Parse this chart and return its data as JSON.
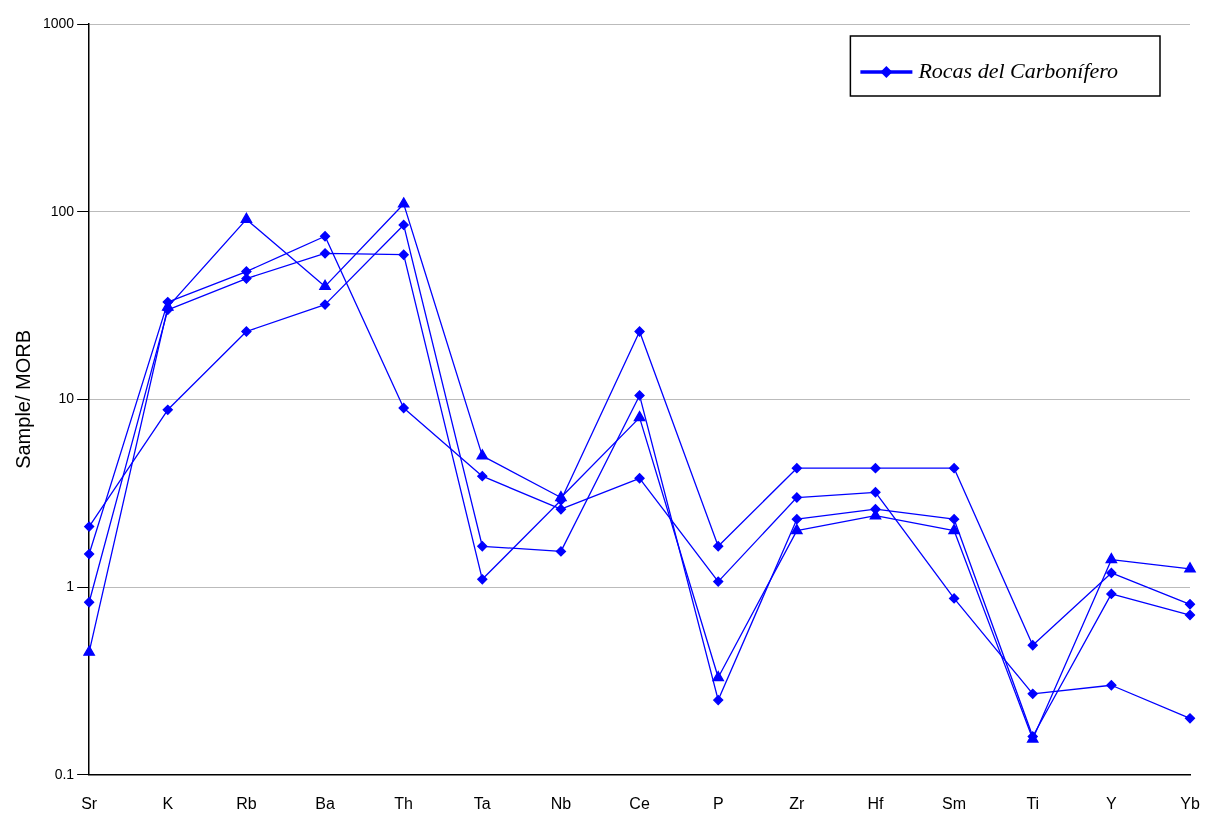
{
  "chart_data": {
    "type": "line",
    "ylabel": "Sample/ MORB",
    "categories": [
      "Sr",
      "K",
      "Rb",
      "Ba",
      "Th",
      "Ta",
      "Nb",
      "Ce",
      "P",
      "Zr",
      "Hf",
      "Sm",
      "Ti",
      "Y",
      "Yb"
    ],
    "series": [
      {
        "name": "Rocas del Carbonífero",
        "color": "#0000ff",
        "marker": "diamond",
        "values": [
          1.5,
          33,
          48,
          74,
          9,
          3.9,
          2.6,
          3.8,
          1.07,
          3.0,
          3.2,
          0.87,
          0.27,
          0.3,
          0.2
        ]
      },
      {
        "color": "#0000ff",
        "marker": "diamond",
        "values": [
          2.1,
          8.8,
          23,
          32,
          85,
          1.65,
          1.55,
          10.5,
          0.25,
          2.3,
          2.6,
          2.3,
          0.16,
          0.92,
          0.71
        ]
      },
      {
        "color": "#0000ff",
        "marker": "diamond",
        "values": [
          0.83,
          30,
          44,
          60,
          59,
          1.1,
          2.9,
          23,
          1.65,
          4.3,
          4.3,
          4.3,
          0.49,
          1.19,
          0.81
        ]
      },
      {
        "color": "#0000ff",
        "marker": "triangle",
        "values": [
          0.45,
          31,
          91,
          40,
          110,
          5.0,
          3.0,
          8.0,
          0.33,
          2.0,
          2.4,
          2.0,
          0.155,
          1.4,
          1.25
        ]
      }
    ],
    "log": "y",
    "ylim": [
      0.1,
      1000
    ],
    "yticks": [
      0.1,
      1,
      10,
      100,
      1000
    ],
    "grid": "y",
    "legend": "top right"
  }
}
